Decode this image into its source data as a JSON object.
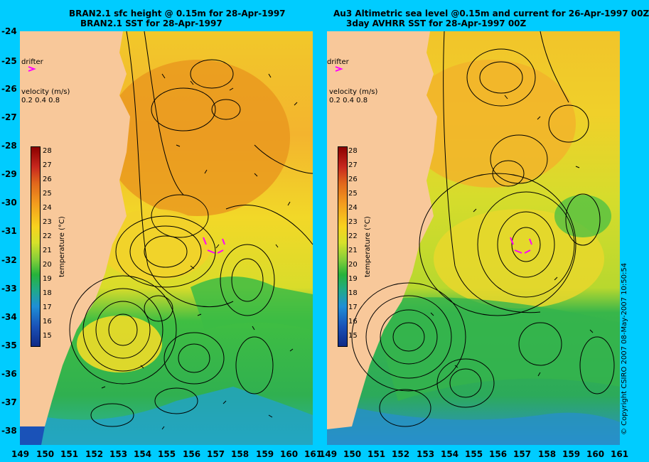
{
  "left_panel": {
    "title_line1": "BRAN2.1 sfc height @ 0.15m for 28-Apr-1997",
    "title_line2": "BRAN2.1 SST for 28-Apr-1997",
    "drifter_label": "drifter",
    "velocity_label": "velocity (m/s)",
    "velocity_scale": "0.2 0.4 0.8",
    "colorbar_title": "temperature (°C)"
  },
  "right_panel": {
    "title_line1": "Au3 Altimetric sea level  @0.15m and current for 26-Apr-1997 00Z",
    "title_line2": "3day AVHRR SST for 28-Apr-1997 00Z",
    "drifter_label": "drifter",
    "velocity_label": "velocity (m/s)",
    "velocity_scale": "0.2 0.4 0.8",
    "colorbar_title": "temperature (°C)"
  },
  "colorbar_ticks": [
    "28",
    "27",
    "26",
    "25",
    "24",
    "23",
    "22",
    "21",
    "20",
    "19",
    "18",
    "17",
    "16",
    "15"
  ],
  "y_ticks": [
    "-24",
    "-25",
    "-26",
    "-27",
    "-28",
    "-29",
    "-30",
    "-31",
    "-32",
    "-33",
    "-34",
    "-35",
    "-36",
    "-37",
    "-38"
  ],
  "x_ticks_left": [
    "149",
    "150",
    "151",
    "152",
    "153",
    "154",
    "155",
    "156",
    "157",
    "158",
    "159",
    "160",
    "161"
  ],
  "x_ticks_right": [
    "149",
    "150",
    "151",
    "152",
    "153",
    "154",
    "155",
    "156",
    "157",
    "158",
    "159",
    "160",
    "161"
  ],
  "copyright": "© Copyright CSIRO 2007  08-May-2007 10:50:54",
  "colors": {
    "background": "#00ccff",
    "land": "#f8c89a",
    "drifter": "#ff00ff",
    "warm": "#f2a22a",
    "mid": "#f1dc28",
    "cool": "#2fb84a",
    "cold": "#1e90d0"
  }
}
